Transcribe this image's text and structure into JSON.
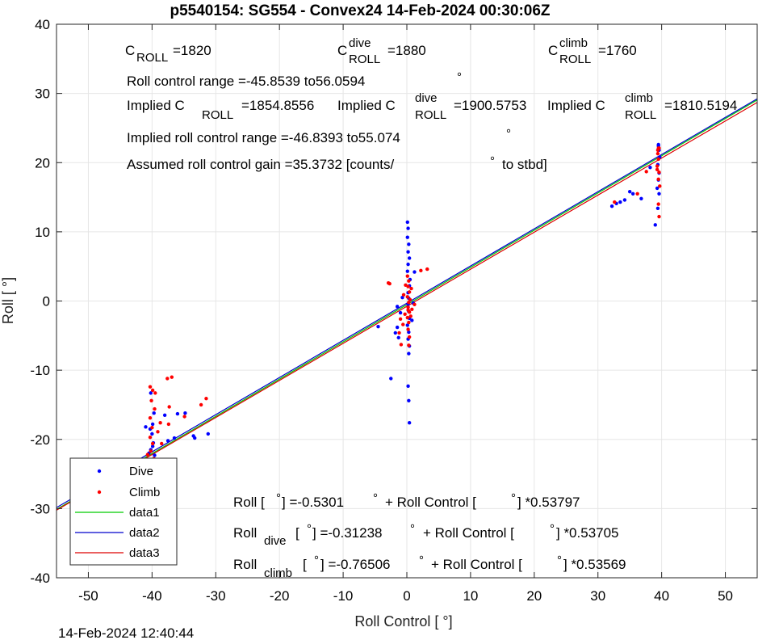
{
  "page": {
    "footer_timestamp": "14-Feb-2024 12:40:44"
  },
  "colors": {
    "dive": "#0000ff",
    "climb": "#ff0000",
    "data1": "#00cc00",
    "data2": "#0000cc",
    "data3": "#dd0000",
    "grid": "#e6e6e6",
    "axes": "#262626"
  },
  "chart_data": {
    "type": "scatter",
    "title": "p5540154: SG554 - Convex24 14-Feb-2024 00:30:06Z",
    "xlabel": "Roll Control [   °]",
    "ylabel": "Roll [   °]",
    "xlim": [
      -55,
      55
    ],
    "ylim": [
      -40,
      40
    ],
    "xticks": [
      -50,
      -40,
      -30,
      -20,
      -10,
      0,
      10,
      20,
      30,
      40,
      50
    ],
    "yticks": [
      -40,
      -30,
      -20,
      -10,
      0,
      10,
      20,
      30,
      40
    ],
    "grid": true,
    "legend_placement": "bottom-left",
    "legend": [
      "Dive",
      "Climb",
      "data1",
      "data2",
      "data3"
    ],
    "annotations": {
      "c_roll": {
        "main": "C",
        "sub": "ROLL",
        "value": "=1820"
      },
      "c_roll_dive": {
        "main": "C",
        "sup": "dive",
        "sub": "ROLL",
        "value": "=1880"
      },
      "c_roll_climb": {
        "main": "C",
        "sup": "climb",
        "sub": "ROLL",
        "value": "=1760"
      },
      "roll_control_range": "Roll control range =-45.8539 to56.0594",
      "implied_c_roll": {
        "prefix": "Implied C",
        "sub": "ROLL",
        "value": "=1854.8556"
      },
      "implied_c_roll_dive": {
        "prefix": "Implied C",
        "sup": "dive",
        "sub": "ROLL",
        "value": "=1900.5753"
      },
      "implied_c_roll_climb": {
        "prefix": "Implied C",
        "sup": "climb",
        "sub": "ROLL",
        "value": "=1810.5194"
      },
      "implied_range": "Implied roll control range =-46.8393 to55.074",
      "gain": "Assumed roll control gain =35.3732 [counts/",
      "gain_suffix": "to stbd]",
      "deg_symbol": "°",
      "fit_all": {
        "a": "Roll [  ",
        "b": "] =-0.5301",
        "c": "+ Roll Control [",
        "d": "] *0.53797"
      },
      "fit_dive": {
        "a": "Roll",
        "sub": "dive",
        "b": "[  ",
        "c": "] =-0.31238",
        "d": "+ Roll Control [",
        "e": "] *0.53705"
      },
      "fit_climb": {
        "a": "Roll",
        "sub": "climb",
        "b": "[  ",
        "c": "] =-0.76506",
        "d": "+ Roll Control [",
        "e": "] *0.53569"
      }
    },
    "lines": [
      {
        "name": "data1",
        "intercept": -0.5301,
        "slope": 0.53797
      },
      {
        "name": "data2",
        "intercept": -0.31238,
        "slope": 0.53705
      },
      {
        "name": "data3",
        "intercept": -0.76506,
        "slope": 0.53569
      }
    ],
    "series": [
      {
        "name": "Dive",
        "points": [
          [
            -40.3,
            -18.5
          ],
          [
            -40,
            -19.2
          ],
          [
            -39.8,
            -20.5
          ],
          [
            -40.2,
            -21.5
          ],
          [
            -39.6,
            -22.3
          ],
          [
            -40.1,
            -23
          ],
          [
            -39.8,
            -23.8
          ],
          [
            -40.3,
            -24.5
          ],
          [
            -41,
            -18.2
          ],
          [
            -39.9,
            -17.8
          ],
          [
            -38,
            -16.5
          ],
          [
            -36,
            -16.3
          ],
          [
            -34.8,
            -16.2
          ],
          [
            -33.5,
            -19.5
          ],
          [
            -31.2,
            -19.2
          ],
          [
            -37.5,
            -20.2
          ],
          [
            -36.5,
            -19.8
          ],
          [
            -33.3,
            -19.8
          ],
          [
            -40.2,
            -13.3
          ],
          [
            -39.7,
            -16.2
          ],
          [
            -40.5,
            -22
          ],
          [
            -39.9,
            -21
          ],
          [
            0.1,
            11.4
          ],
          [
            0.2,
            10.5
          ],
          [
            0.1,
            9.2
          ],
          [
            0.3,
            8.2
          ],
          [
            0.2,
            7.1
          ],
          [
            0.4,
            6.2
          ],
          [
            0.2,
            5.3
          ],
          [
            0.1,
            4.3
          ],
          [
            0.5,
            3.1
          ],
          [
            0.4,
            2.2
          ],
          [
            0.2,
            1.2
          ],
          [
            0.3,
            0.4
          ],
          [
            0.2,
            -0.5
          ],
          [
            0.3,
            -1.5
          ],
          [
            0.4,
            -2.5
          ],
          [
            0.1,
            -3.5
          ],
          [
            0.3,
            -4.5
          ],
          [
            0.2,
            -5.5
          ],
          [
            0.4,
            -6.5
          ],
          [
            0.3,
            -7.6
          ],
          [
            0.2,
            -12.3
          ],
          [
            0.3,
            -14.4
          ],
          [
            0.4,
            -17.6
          ],
          [
            -1.5,
            -3.8
          ],
          [
            -1.8,
            -4.6
          ],
          [
            -1.3,
            -5.3
          ],
          [
            -2.5,
            -11.2
          ],
          [
            -4.5,
            -3.7
          ],
          [
            1.2,
            4.2
          ],
          [
            -1.5,
            -0.8
          ],
          [
            -1,
            -1.7
          ],
          [
            0.8,
            -2.8
          ],
          [
            1,
            -0.3
          ],
          [
            -0.7,
            0.5
          ],
          [
            32.2,
            13.7
          ],
          [
            32.9,
            14.1
          ],
          [
            33.5,
            14.3
          ],
          [
            34.2,
            14.6
          ],
          [
            35,
            15.8
          ],
          [
            35.5,
            15.5
          ],
          [
            36.8,
            14.8
          ],
          [
            38.2,
            19.3
          ],
          [
            39,
            11
          ],
          [
            39.5,
            22.4
          ],
          [
            39.6,
            21.8
          ],
          [
            39.7,
            20.8
          ],
          [
            39.4,
            19.7
          ],
          [
            39.6,
            18.5
          ],
          [
            39.5,
            17.5
          ],
          [
            39.3,
            16.3
          ],
          [
            39.6,
            15.5
          ],
          [
            39.4,
            13.4
          ],
          [
            39.5,
            22.6
          ]
        ]
      },
      {
        "name": "Climb",
        "points": [
          [
            -40.3,
            -12.4
          ],
          [
            -39.9,
            -12.9
          ],
          [
            -40.1,
            -14.4
          ],
          [
            -39.6,
            -15.6
          ],
          [
            -40.3,
            -16.9
          ],
          [
            -40,
            -18.3
          ],
          [
            -40.3,
            -19.7
          ],
          [
            -39.9,
            -20.6
          ],
          [
            -40.2,
            -21.7
          ],
          [
            -39.7,
            -22.8
          ],
          [
            -40,
            -23.8
          ],
          [
            -40.4,
            -24.7
          ],
          [
            -37.6,
            -11.2
          ],
          [
            -36.9,
            -11
          ],
          [
            -37.4,
            -17.8
          ],
          [
            -38.7,
            -17.6
          ],
          [
            -37.3,
            -15.3
          ],
          [
            -34.9,
            -16.7
          ],
          [
            -32.3,
            -15
          ],
          [
            -31.5,
            -14.1
          ],
          [
            -39.1,
            -18.9
          ],
          [
            -38.5,
            -20.6
          ],
          [
            -40.7,
            -22.2
          ],
          [
            -39.5,
            -13.3
          ],
          [
            0.1,
            3.6
          ],
          [
            0.3,
            2.9
          ],
          [
            0.2,
            2.1
          ],
          [
            0.4,
            1.3
          ],
          [
            0.1,
            0.6
          ],
          [
            0.3,
            -0.2
          ],
          [
            0.2,
            -0.9
          ],
          [
            0.4,
            -1.6
          ],
          [
            0.1,
            -2.4
          ],
          [
            0.3,
            -3.1
          ],
          [
            0.2,
            -4.1
          ],
          [
            0.4,
            -5.2
          ],
          [
            0.3,
            -6.4
          ],
          [
            0.2,
            -1.3
          ],
          [
            0.5,
            0.2
          ],
          [
            -0.2,
            2.3
          ],
          [
            -1,
            -2.6
          ],
          [
            -1.2,
            -4.6
          ],
          [
            -2.9,
            2.6
          ],
          [
            -2.7,
            2.5
          ],
          [
            1.2,
            -0.5
          ],
          [
            2.2,
            4.4
          ],
          [
            3.2,
            4.6
          ],
          [
            -0.9,
            -6.3
          ],
          [
            0.7,
            1.8
          ],
          [
            -0.5,
            0.9
          ],
          [
            -0.3,
            -1.9
          ],
          [
            0.8,
            -1.2
          ],
          [
            0.6,
            -2.2
          ],
          [
            -0.6,
            -3.4
          ],
          [
            32.6,
            14.3
          ],
          [
            36.2,
            15.5
          ],
          [
            37.6,
            18.7
          ],
          [
            39.6,
            12.2
          ],
          [
            39.5,
            14
          ],
          [
            39.4,
            21.3
          ],
          [
            39.6,
            22.1
          ],
          [
            39.5,
            20.5
          ],
          [
            39.3,
            19.5
          ],
          [
            39.6,
            18.6
          ],
          [
            39.5,
            17.6
          ],
          [
            39.7,
            16.6
          ],
          [
            39.4,
            21.8
          ],
          [
            39.5,
            22.1
          ],
          [
            39.3,
            19
          ]
        ]
      }
    ]
  }
}
